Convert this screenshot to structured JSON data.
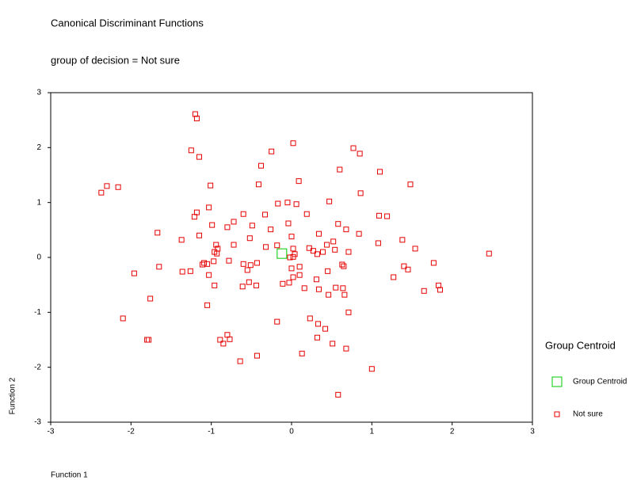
{
  "chart_data": {
    "type": "scatter",
    "title": "Canonical Discriminant Functions",
    "subtitle": "group of decision = Not sure",
    "x_label": "Function 1",
    "y_label": "Function 2",
    "legend_title": "Group Centroid",
    "legend": "right",
    "xlim": [
      -3,
      3
    ],
    "ylim": [
      -3,
      3
    ],
    "xticks": [
      -3,
      -2,
      -1,
      0,
      1,
      2,
      3
    ],
    "yticks": [
      -3,
      -2,
      -1,
      0,
      1,
      2,
      3
    ],
    "series": [
      {
        "name": "Group Centroid",
        "color": "#00c800",
        "x": [
          -0.12
        ],
        "values": [
          0.07
        ]
      },
      {
        "name": "Not sure",
        "color": "#e60000",
        "x": [
          -1.2,
          -1.18,
          -1.25,
          -1.15,
          -0.25,
          0.02,
          0.77,
          0.85,
          -0.38,
          0.6,
          1.1,
          -2.37,
          -2.3,
          -2.16,
          -1.01,
          -0.41,
          0.09,
          1.48,
          0.86,
          -0.05,
          -0.17,
          0.06,
          0.47,
          -1.21,
          -1.18,
          -1.03,
          -0.6,
          -0.33,
          0.19,
          1.09,
          1.19,
          -1.67,
          -0.99,
          -0.72,
          -1.15,
          -0.8,
          -0.49,
          -0.26,
          -0.04,
          0.58,
          0.68,
          0.84,
          -1.37,
          -0.94,
          -0.52,
          -0.18,
          0.0,
          0.34,
          1.08,
          1.38,
          -0.96,
          -0.92,
          -0.72,
          0.22,
          0.44,
          0.52,
          0.71,
          0.02,
          0.04,
          1.54,
          0.39,
          0.54,
          -0.93,
          -1.09,
          -0.97,
          -0.78,
          -0.6,
          -0.51,
          -0.43,
          -0.32,
          0.1,
          0.27,
          0.32,
          -1.11,
          -1.05,
          -1.36,
          -1.26,
          -1.96,
          -1.65,
          -1.03,
          -0.55,
          -0.02,
          0.02,
          0.0,
          -0.61,
          -0.53,
          -0.44,
          -0.11,
          -0.03,
          0.02,
          0.1,
          0.45,
          0.63,
          0.65,
          1.27,
          1.4,
          1.45,
          1.77,
          1.83,
          1.85,
          2.46,
          0.16,
          0.31,
          0.34,
          -0.96,
          0.55,
          0.64,
          0.66,
          1.65,
          0.46,
          -1.76,
          -1.05,
          0.71,
          -2.1,
          0.23,
          -0.18,
          0.33,
          0.42,
          -0.8,
          -0.77,
          -0.89,
          -0.85,
          -1.78,
          -1.8,
          0.32,
          0.51,
          0.68,
          0.13,
          -0.43,
          -0.64,
          1.0,
          0.58
        ],
        "values": [
          2.61,
          2.53,
          1.95,
          1.83,
          1.93,
          2.08,
          1.99,
          1.89,
          1.67,
          1.6,
          1.56,
          1.18,
          1.3,
          1.28,
          1.31,
          1.33,
          1.39,
          1.33,
          1.17,
          1.0,
          0.98,
          0.97,
          1.02,
          0.74,
          0.82,
          0.91,
          0.79,
          0.78,
          0.79,
          0.76,
          0.75,
          0.45,
          0.59,
          0.65,
          0.4,
          0.55,
          0.58,
          0.51,
          0.62,
          0.61,
          0.51,
          0.43,
          0.32,
          0.23,
          0.35,
          0.22,
          0.38,
          0.43,
          0.26,
          0.32,
          0.1,
          0.16,
          0.23,
          0.17,
          0.23,
          0.29,
          0.1,
          0.16,
          0.06,
          0.16,
          0.1,
          0.14,
          0.07,
          -0.1,
          -0.07,
          -0.06,
          -0.12,
          -0.14,
          -0.1,
          0.19,
          -0.17,
          0.12,
          0.06,
          -0.13,
          -0.12,
          -0.26,
          -0.25,
          -0.29,
          -0.17,
          -0.32,
          -0.23,
          0.0,
          0.01,
          -0.2,
          -0.53,
          -0.45,
          -0.51,
          -0.48,
          -0.46,
          -0.36,
          -0.32,
          -0.25,
          -0.13,
          -0.16,
          -0.36,
          -0.16,
          -0.22,
          -0.1,
          -0.51,
          -0.59,
          0.07,
          -0.56,
          -0.4,
          -0.58,
          -0.51,
          -0.55,
          -0.56,
          -0.68,
          -0.61,
          -0.68,
          -0.75,
          -0.87,
          -1.0,
          -1.11,
          -1.11,
          -1.17,
          -1.21,
          -1.3,
          -1.41,
          -1.49,
          -1.5,
          -1.57,
          -1.5,
          -1.5,
          -1.46,
          -1.57,
          -1.66,
          -1.75,
          -1.79,
          -1.89,
          -2.03,
          -2.5
        ]
      }
    ]
  }
}
